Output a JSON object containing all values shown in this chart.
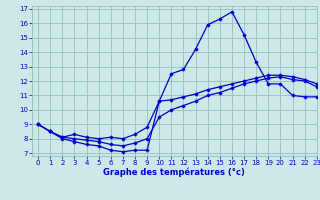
{
  "title": "Graphe des températures (°c)",
  "bg_color": "#cce8e8",
  "grid_color": "#99bbbb",
  "line_color": "#0000cc",
  "xlim": [
    -0.5,
    23
  ],
  "ylim": [
    6.8,
    17.2
  ],
  "xticks": [
    0,
    1,
    2,
    3,
    4,
    5,
    6,
    7,
    8,
    9,
    10,
    11,
    12,
    13,
    14,
    15,
    16,
    17,
    18,
    19,
    20,
    21,
    22,
    23
  ],
  "yticks": [
    7,
    8,
    9,
    10,
    11,
    12,
    13,
    14,
    15,
    16,
    17
  ],
  "series1_x": [
    0,
    1,
    2,
    3,
    4,
    5,
    6,
    7,
    8,
    9,
    10,
    11,
    12,
    13,
    14,
    15,
    16,
    17,
    18,
    19,
    20,
    21,
    22,
    23
  ],
  "series1_y": [
    9.0,
    8.5,
    8.0,
    7.8,
    7.6,
    7.5,
    7.2,
    7.1,
    7.2,
    7.2,
    10.6,
    12.5,
    12.8,
    14.2,
    15.9,
    16.3,
    16.8,
    15.2,
    13.3,
    11.8,
    11.8,
    11.0,
    10.9,
    10.9
  ],
  "series2_x": [
    0,
    1,
    2,
    3,
    4,
    5,
    6,
    7,
    8,
    9,
    10,
    11,
    12,
    13,
    14,
    15,
    16,
    17,
    18,
    19,
    20,
    21,
    22,
    23
  ],
  "series2_y": [
    9.0,
    8.5,
    8.1,
    8.3,
    8.1,
    8.0,
    8.1,
    8.0,
    8.3,
    8.8,
    10.6,
    10.7,
    10.9,
    11.1,
    11.4,
    11.6,
    11.8,
    12.0,
    12.2,
    12.4,
    12.4,
    12.3,
    12.1,
    11.8
  ],
  "series3_x": [
    0,
    1,
    2,
    3,
    4,
    5,
    6,
    7,
    8,
    9,
    10,
    11,
    12,
    13,
    14,
    15,
    16,
    17,
    18,
    19,
    20,
    21,
    22,
    23
  ],
  "series3_y": [
    9.0,
    8.5,
    8.1,
    8.0,
    7.9,
    7.8,
    7.6,
    7.5,
    7.7,
    8.0,
    9.5,
    10.0,
    10.3,
    10.6,
    11.0,
    11.2,
    11.5,
    11.8,
    12.0,
    12.2,
    12.3,
    12.1,
    12.0,
    11.6
  ]
}
